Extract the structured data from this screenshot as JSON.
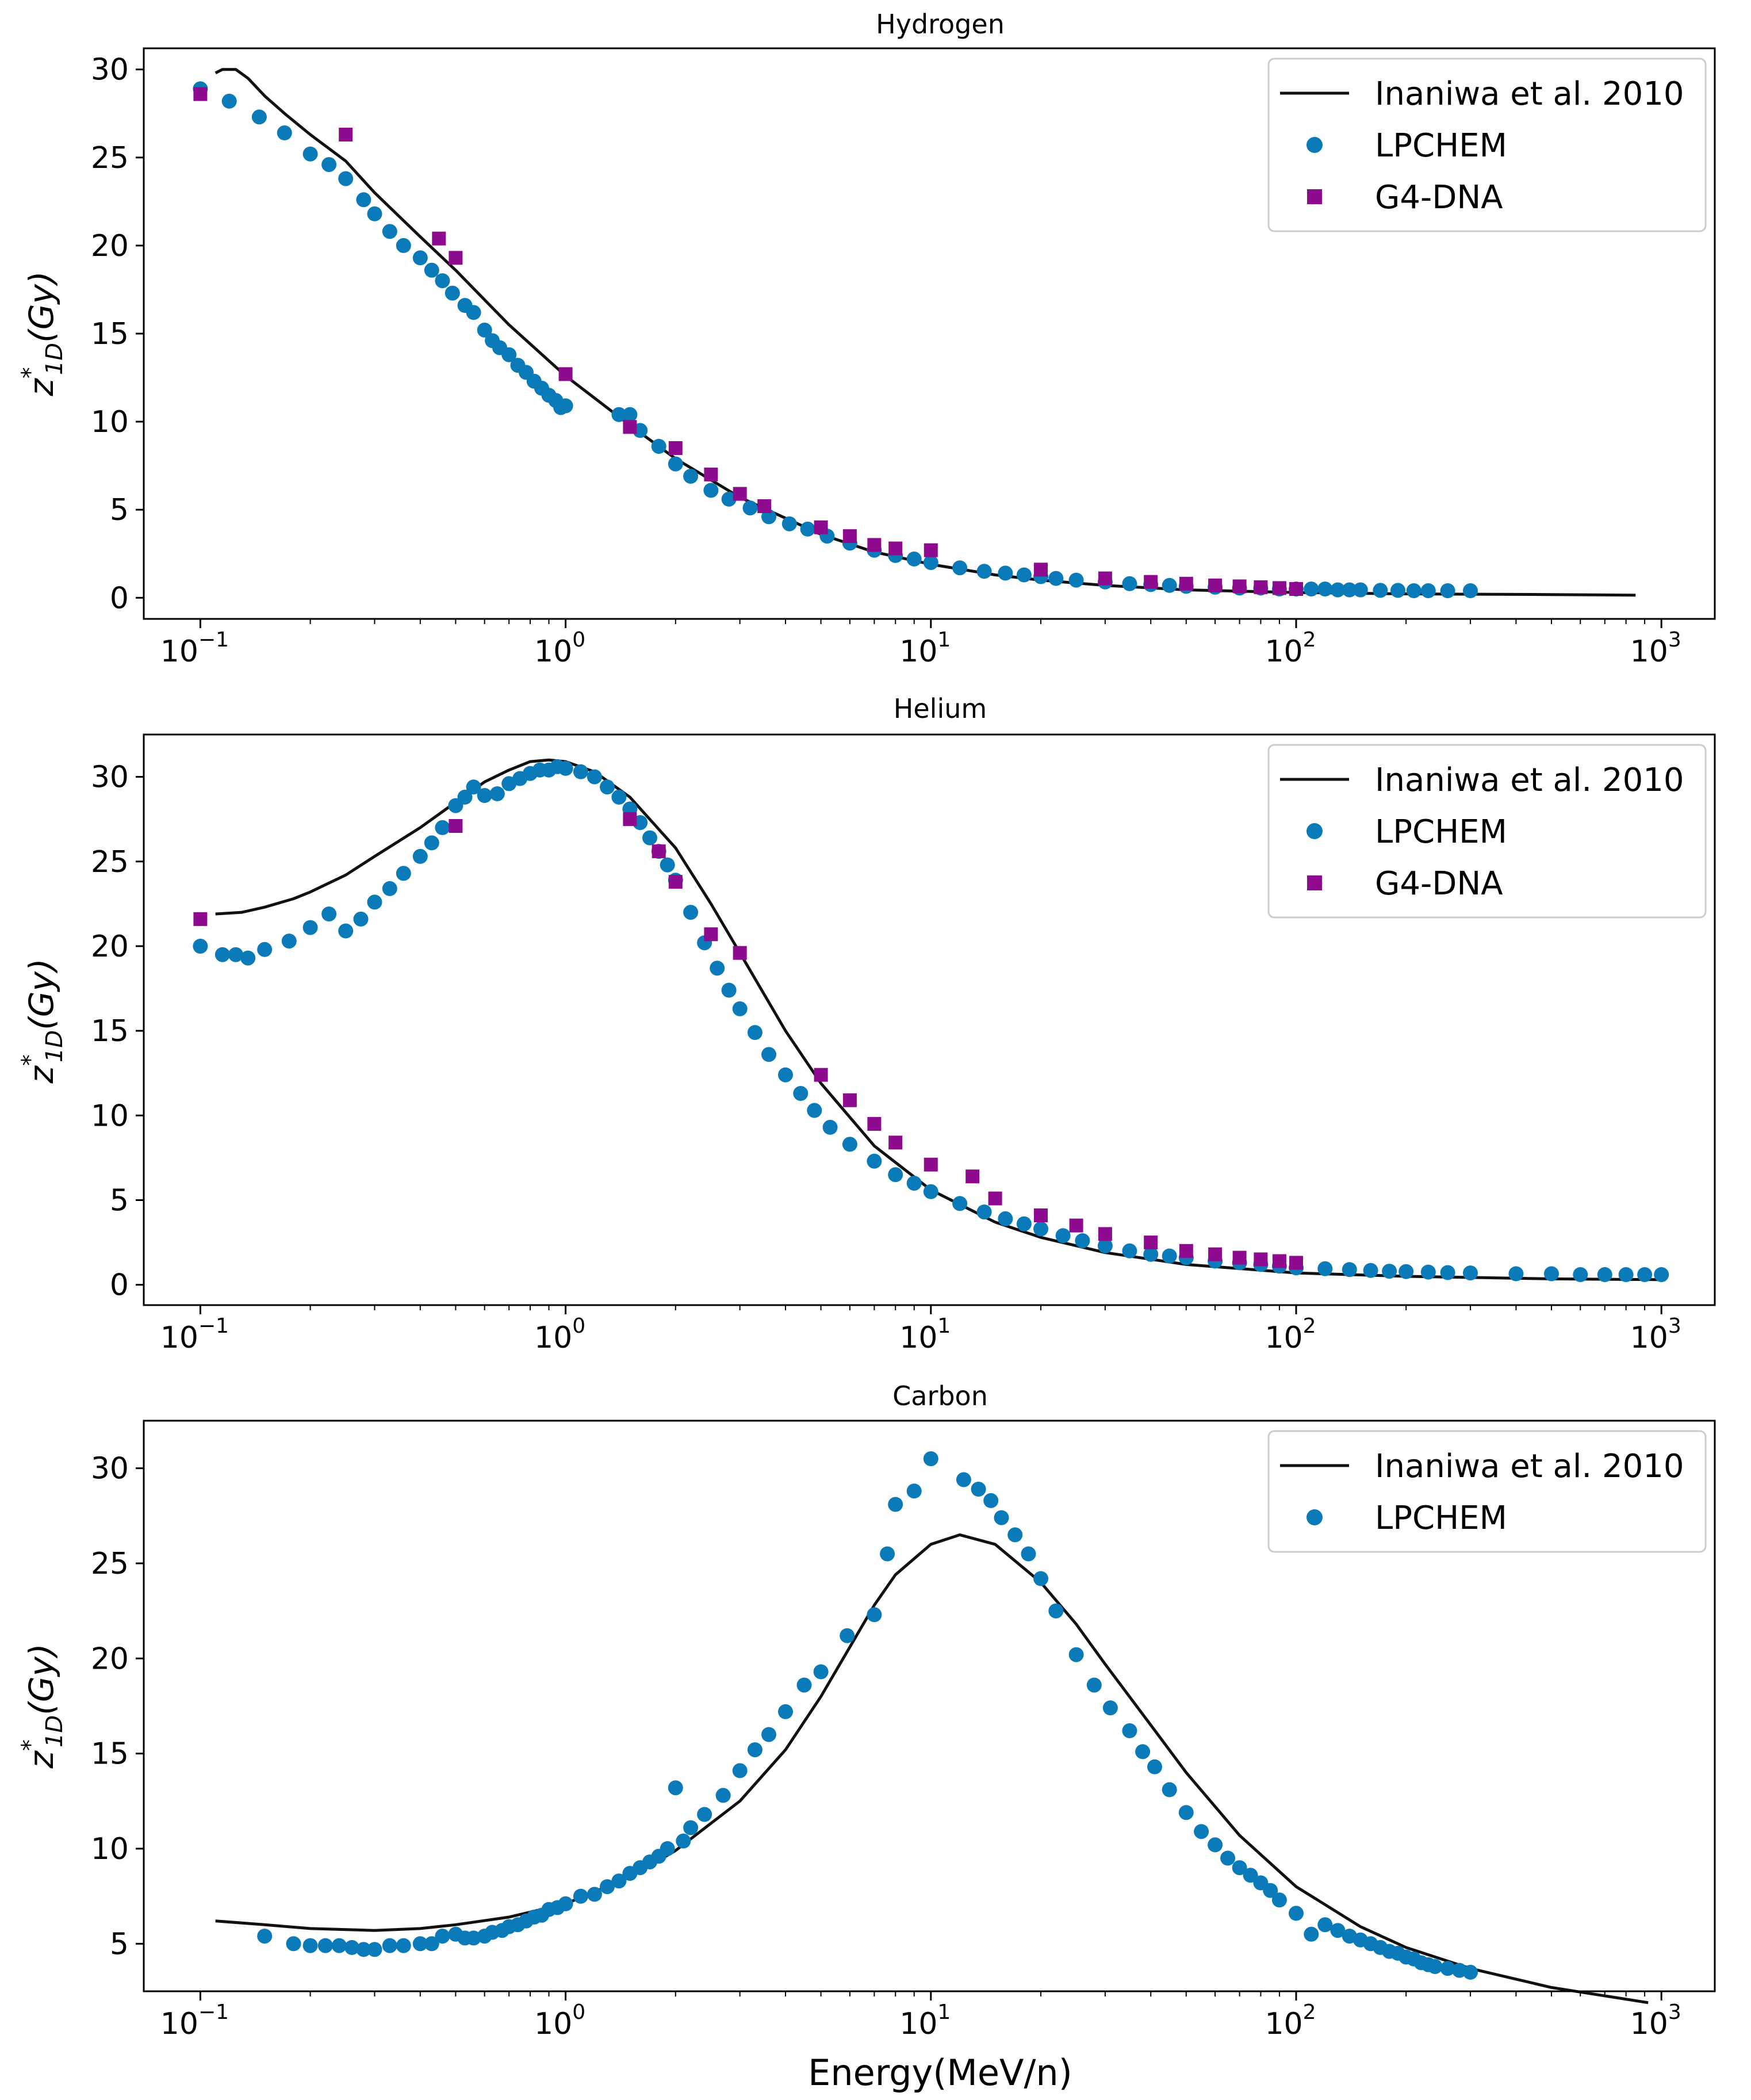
{
  "figure": {
    "xlabel": "Energy(MeV/n)",
    "ylabel": {
      "base": "z",
      "sup": "*",
      "sub": "1D",
      "unit": "(Gy)"
    }
  },
  "colors": {
    "line": "#111111",
    "lpchem": "#0a7ab8",
    "g4dna": "#8e0a8e",
    "axis": "#000000",
    "legend_border": "#cccccc"
  },
  "icons": {
    "lpchem_marker": "circle-marker",
    "g4dna_marker": "square-marker",
    "line_marker": "line-marker"
  },
  "chart_data": [
    {
      "type": "line+scatter",
      "title": "Hydrogen",
      "xscale": "log",
      "xlim": [
        0.07,
        1400
      ],
      "ylim": [
        -1.2,
        31.2
      ],
      "xticks": [
        {
          "base": "10",
          "exp": "−1"
        },
        {
          "base": "10",
          "exp": "0"
        },
        {
          "base": "10",
          "exp": "1"
        },
        {
          "base": "10",
          "exp": "2"
        },
        {
          "base": "10",
          "exp": "3"
        }
      ],
      "xtick_values": [
        0.1,
        1,
        10,
        100,
        1000
      ],
      "yticks": [
        0,
        5,
        10,
        15,
        20,
        25,
        30
      ],
      "legend": {
        "position": "top-right",
        "entries": [
          "Inaniwa et al. 2010",
          "LPCHEM",
          "G4-DNA"
        ]
      },
      "series": [
        {
          "name": "Inaniwa et al. 2010",
          "kind": "line",
          "x": [
            0.11,
            0.115,
            0.125,
            0.135,
            0.15,
            0.17,
            0.2,
            0.25,
            0.3,
            0.4,
            0.5,
            0.7,
            1.0,
            1.5,
            2.0,
            3.0,
            5.0,
            7.0,
            10,
            15,
            20,
            30,
            50,
            100,
            200,
            500,
            850
          ],
          "y": [
            29.8,
            30.0,
            30.0,
            29.5,
            28.5,
            27.5,
            26.3,
            24.8,
            23.0,
            20.5,
            18.6,
            15.5,
            12.6,
            9.8,
            7.9,
            5.7,
            3.6,
            2.6,
            1.9,
            1.3,
            1.0,
            0.7,
            0.45,
            0.3,
            0.22,
            0.18,
            0.15
          ]
        },
        {
          "name": "LPCHEM",
          "kind": "scatter",
          "x": [
            0.1,
            0.12,
            0.145,
            0.17,
            0.2,
            0.225,
            0.25,
            0.28,
            0.3,
            0.33,
            0.36,
            0.4,
            0.43,
            0.46,
            0.49,
            0.53,
            0.56,
            0.6,
            0.63,
            0.66,
            0.7,
            0.74,
            0.78,
            0.82,
            0.86,
            0.9,
            0.94,
            0.97,
            1.0,
            1.4,
            1.5,
            1.6,
            1.8,
            2.0,
            2.2,
            2.5,
            2.8,
            3.2,
            3.6,
            4.1,
            4.6,
            5.2,
            6.0,
            7.0,
            8.0,
            9.0,
            10,
            12,
            14,
            16,
            18,
            20,
            22,
            25,
            30,
            35,
            40,
            45,
            50,
            60,
            70,
            80,
            90,
            100,
            110,
            120,
            130,
            140,
            150,
            170,
            190,
            210,
            230,
            260,
            300
          ],
          "y": [
            28.9,
            28.2,
            27.3,
            26.4,
            25.2,
            24.6,
            23.8,
            22.6,
            21.8,
            20.8,
            20.0,
            19.3,
            18.6,
            18.0,
            17.3,
            16.6,
            16.2,
            15.2,
            14.6,
            14.2,
            13.8,
            13.2,
            12.8,
            12.3,
            11.9,
            11.5,
            11.2,
            10.8,
            10.9,
            10.4,
            10.4,
            9.5,
            8.6,
            7.6,
            6.9,
            6.1,
            5.6,
            5.1,
            4.6,
            4.2,
            3.9,
            3.5,
            3.1,
            2.7,
            2.4,
            2.2,
            2.0,
            1.7,
            1.5,
            1.4,
            1.3,
            1.2,
            1.1,
            1.0,
            0.9,
            0.8,
            0.75,
            0.7,
            0.65,
            0.6,
            0.55,
            0.55,
            0.5,
            0.5,
            0.5,
            0.5,
            0.45,
            0.45,
            0.45,
            0.42,
            0.42,
            0.4,
            0.4,
            0.4,
            0.4
          ]
        },
        {
          "name": "G4-DNA",
          "kind": "scatter",
          "x": [
            0.1,
            0.25,
            0.45,
            0.5,
            1.0,
            1.5,
            2.0,
            2.5,
            3.0,
            3.5,
            5.0,
            6.0,
            7.0,
            8.0,
            10,
            20,
            30,
            40,
            50,
            60,
            70,
            80,
            90,
            100
          ],
          "y": [
            28.6,
            26.3,
            20.4,
            19.3,
            12.7,
            9.7,
            8.5,
            7.0,
            5.9,
            5.2,
            4.0,
            3.5,
            3.0,
            2.8,
            2.7,
            1.6,
            1.1,
            0.9,
            0.8,
            0.7,
            0.65,
            0.6,
            0.55,
            0.5
          ]
        }
      ]
    },
    {
      "type": "line+scatter",
      "title": "Helium",
      "xscale": "log",
      "xlim": [
        0.07,
        1400
      ],
      "ylim": [
        -1.2,
        32.5
      ],
      "xticks": [
        {
          "base": "10",
          "exp": "−1"
        },
        {
          "base": "10",
          "exp": "0"
        },
        {
          "base": "10",
          "exp": "1"
        },
        {
          "base": "10",
          "exp": "2"
        },
        {
          "base": "10",
          "exp": "3"
        }
      ],
      "xtick_values": [
        0.1,
        1,
        10,
        100,
        1000
      ],
      "yticks": [
        0,
        5,
        10,
        15,
        20,
        25,
        30
      ],
      "legend": {
        "position": "top-right",
        "entries": [
          "Inaniwa et al. 2010",
          "LPCHEM",
          "G4-DNA"
        ]
      },
      "series": [
        {
          "name": "Inaniwa et al. 2010",
          "kind": "line",
          "x": [
            0.11,
            0.13,
            0.15,
            0.18,
            0.2,
            0.25,
            0.3,
            0.4,
            0.5,
            0.6,
            0.7,
            0.8,
            0.9,
            1.0,
            1.2,
            1.5,
            2.0,
            2.5,
            3.0,
            4.0,
            5.0,
            7.0,
            10,
            15,
            20,
            30,
            50,
            100,
            200,
            500,
            1000
          ],
          "y": [
            21.9,
            22.0,
            22.3,
            22.8,
            23.2,
            24.2,
            25.3,
            27.0,
            28.5,
            29.7,
            30.4,
            30.9,
            31.0,
            30.9,
            30.3,
            28.8,
            25.8,
            22.5,
            19.6,
            15.0,
            11.9,
            8.2,
            5.6,
            3.7,
            2.8,
            1.9,
            1.2,
            0.7,
            0.5,
            0.35,
            0.3
          ]
        },
        {
          "name": "LPCHEM",
          "kind": "scatter",
          "x": [
            0.1,
            0.115,
            0.125,
            0.135,
            0.15,
            0.175,
            0.2,
            0.225,
            0.25,
            0.275,
            0.3,
            0.33,
            0.36,
            0.4,
            0.43,
            0.46,
            0.5,
            0.53,
            0.56,
            0.6,
            0.65,
            0.7,
            0.75,
            0.8,
            0.85,
            0.9,
            0.95,
            1.0,
            1.1,
            1.2,
            1.3,
            1.4,
            1.5,
            1.6,
            1.7,
            1.8,
            1.9,
            2.0,
            2.2,
            2.4,
            2.6,
            2.8,
            3.0,
            3.3,
            3.6,
            4.0,
            4.4,
            4.8,
            5.3,
            6.0,
            7.0,
            8.0,
            9.0,
            10,
            12,
            14,
            16,
            18,
            20,
            23,
            26,
            30,
            35,
            40,
            45,
            50,
            60,
            70,
            80,
            90,
            100,
            120,
            140,
            160,
            180,
            200,
            230,
            260,
            300,
            400,
            500,
            600,
            700,
            800,
            900,
            1000
          ],
          "y": [
            20.0,
            19.5,
            19.5,
            19.3,
            19.8,
            20.3,
            21.1,
            21.9,
            20.9,
            21.6,
            22.6,
            23.4,
            24.3,
            25.3,
            26.1,
            27.0,
            28.3,
            28.8,
            29.4,
            28.9,
            29.0,
            29.6,
            29.9,
            30.2,
            30.4,
            30.4,
            30.6,
            30.5,
            30.3,
            30.0,
            29.4,
            28.8,
            28.1,
            27.3,
            26.4,
            25.6,
            24.8,
            23.9,
            22.0,
            20.2,
            18.7,
            17.4,
            16.3,
            14.9,
            13.6,
            12.4,
            11.3,
            10.3,
            9.3,
            8.3,
            7.3,
            6.5,
            6.0,
            5.5,
            4.8,
            4.3,
            3.9,
            3.6,
            3.3,
            2.9,
            2.6,
            2.3,
            2.0,
            1.8,
            1.7,
            1.6,
            1.4,
            1.3,
            1.2,
            1.1,
            1.0,
            0.95,
            0.9,
            0.85,
            0.8,
            0.78,
            0.75,
            0.72,
            0.7,
            0.65,
            0.65,
            0.6,
            0.6,
            0.6,
            0.6,
            0.6
          ]
        },
        {
          "name": "G4-DNA",
          "kind": "scatter",
          "x": [
            0.1,
            0.5,
            1.5,
            1.8,
            2.0,
            2.5,
            3.0,
            5.0,
            6.0,
            7.0,
            8.0,
            10,
            13,
            15,
            20,
            25,
            30,
            40,
            50,
            60,
            70,
            80,
            90,
            100
          ],
          "y": [
            21.6,
            27.1,
            27.5,
            25.6,
            23.8,
            20.7,
            19.6,
            12.4,
            10.9,
            9.5,
            8.4,
            7.1,
            6.4,
            5.1,
            4.1,
            3.5,
            3.0,
            2.5,
            2.0,
            1.8,
            1.6,
            1.5,
            1.4,
            1.3
          ]
        }
      ]
    },
    {
      "type": "line+scatter",
      "title": "Carbon",
      "xscale": "log",
      "xlim": [
        0.07,
        1400
      ],
      "ylim": [
        2.5,
        32.5
      ],
      "xticks": [
        {
          "base": "10",
          "exp": "−1"
        },
        {
          "base": "10",
          "exp": "0"
        },
        {
          "base": "10",
          "exp": "1"
        },
        {
          "base": "10",
          "exp": "2"
        },
        {
          "base": "10",
          "exp": "3"
        }
      ],
      "xtick_values": [
        0.1,
        1,
        10,
        100,
        1000
      ],
      "yticks": [
        5,
        10,
        15,
        20,
        25,
        30
      ],
      "legend": {
        "position": "top-right",
        "entries": [
          "Inaniwa et al. 2010",
          "LPCHEM"
        ]
      },
      "series": [
        {
          "name": "Inaniwa et al. 2010",
          "kind": "line",
          "x": [
            0.11,
            0.15,
            0.2,
            0.3,
            0.4,
            0.5,
            0.7,
            1.0,
            1.5,
            2.0,
            3.0,
            4.0,
            5.0,
            6.0,
            7.0,
            8.0,
            10,
            12,
            15,
            20,
            25,
            30,
            40,
            50,
            70,
            100,
            150,
            200,
            300,
            500,
            920
          ],
          "y": [
            6.2,
            6.0,
            5.8,
            5.7,
            5.8,
            6.0,
            6.4,
            7.1,
            8.5,
            9.9,
            12.5,
            15.2,
            18.0,
            20.6,
            22.8,
            24.4,
            26.0,
            26.5,
            26.0,
            24.0,
            21.8,
            19.7,
            16.5,
            14.0,
            10.7,
            8.0,
            5.9,
            4.8,
            3.7,
            2.7,
            1.9
          ]
        },
        {
          "name": "LPCHEM",
          "kind": "scatter",
          "x": [
            0.15,
            0.18,
            0.2,
            0.22,
            0.24,
            0.26,
            0.28,
            0.3,
            0.33,
            0.36,
            0.4,
            0.43,
            0.46,
            0.5,
            0.53,
            0.56,
            0.6,
            0.63,
            0.67,
            0.7,
            0.74,
            0.78,
            0.82,
            0.86,
            0.9,
            0.95,
            1.0,
            1.1,
            1.2,
            1.3,
            1.4,
            1.5,
            1.6,
            1.7,
            1.8,
            1.9,
            2.0,
            2.1,
            2.2,
            2.4,
            2.7,
            3.0,
            3.3,
            3.6,
            4.0,
            4.5,
            5.0,
            5.9,
            7.0,
            7.6,
            8.0,
            9.0,
            10,
            12.3,
            13.5,
            14.6,
            15.6,
            17,
            18.5,
            20,
            22,
            25,
            28,
            31,
            35,
            38,
            41,
            45,
            50,
            55,
            60,
            65,
            70,
            75,
            80,
            85,
            90,
            100,
            110,
            120,
            130,
            140,
            150,
            160,
            170,
            180,
            190,
            200,
            210,
            220,
            230,
            240,
            260,
            280,
            300
          ],
          "y": [
            5.4,
            5.0,
            4.9,
            4.9,
            4.9,
            4.8,
            4.7,
            4.7,
            4.9,
            4.9,
            5.0,
            5.0,
            5.4,
            5.5,
            5.3,
            5.3,
            5.4,
            5.6,
            5.7,
            5.9,
            6.0,
            6.2,
            6.4,
            6.5,
            6.8,
            6.9,
            7.1,
            7.5,
            7.6,
            8.0,
            8.3,
            8.7,
            9.0,
            9.3,
            9.6,
            10.0,
            13.2,
            10.4,
            11.1,
            11.8,
            12.8,
            14.1,
            15.2,
            16.0,
            17.2,
            18.6,
            19.3,
            21.2,
            22.3,
            25.5,
            28.1,
            28.8,
            30.5,
            29.4,
            28.9,
            28.3,
            27.4,
            26.5,
            25.5,
            24.2,
            22.5,
            20.2,
            18.6,
            17.4,
            16.2,
            15.1,
            14.3,
            13.1,
            11.9,
            10.9,
            10.2,
            9.5,
            9.0,
            8.6,
            8.2,
            7.8,
            7.3,
            6.6,
            5.5,
            6.0,
            5.7,
            5.4,
            5.2,
            5.0,
            4.8,
            4.6,
            4.5,
            4.3,
            4.2,
            4.0,
            3.9,
            3.8,
            3.7,
            3.6,
            3.5
          ]
        }
      ]
    }
  ]
}
